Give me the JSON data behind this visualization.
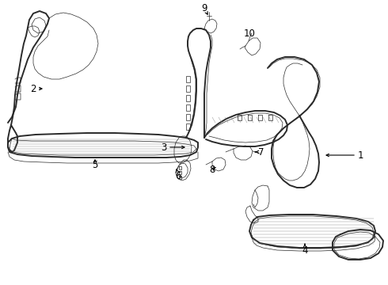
{
  "bg_color": "#ffffff",
  "line_color": "#2a2a2a",
  "label_color": "#000000",
  "lw_thin": 0.5,
  "lw_med": 0.9,
  "lw_thick": 1.4,
  "label_fontsize": 8.5
}
